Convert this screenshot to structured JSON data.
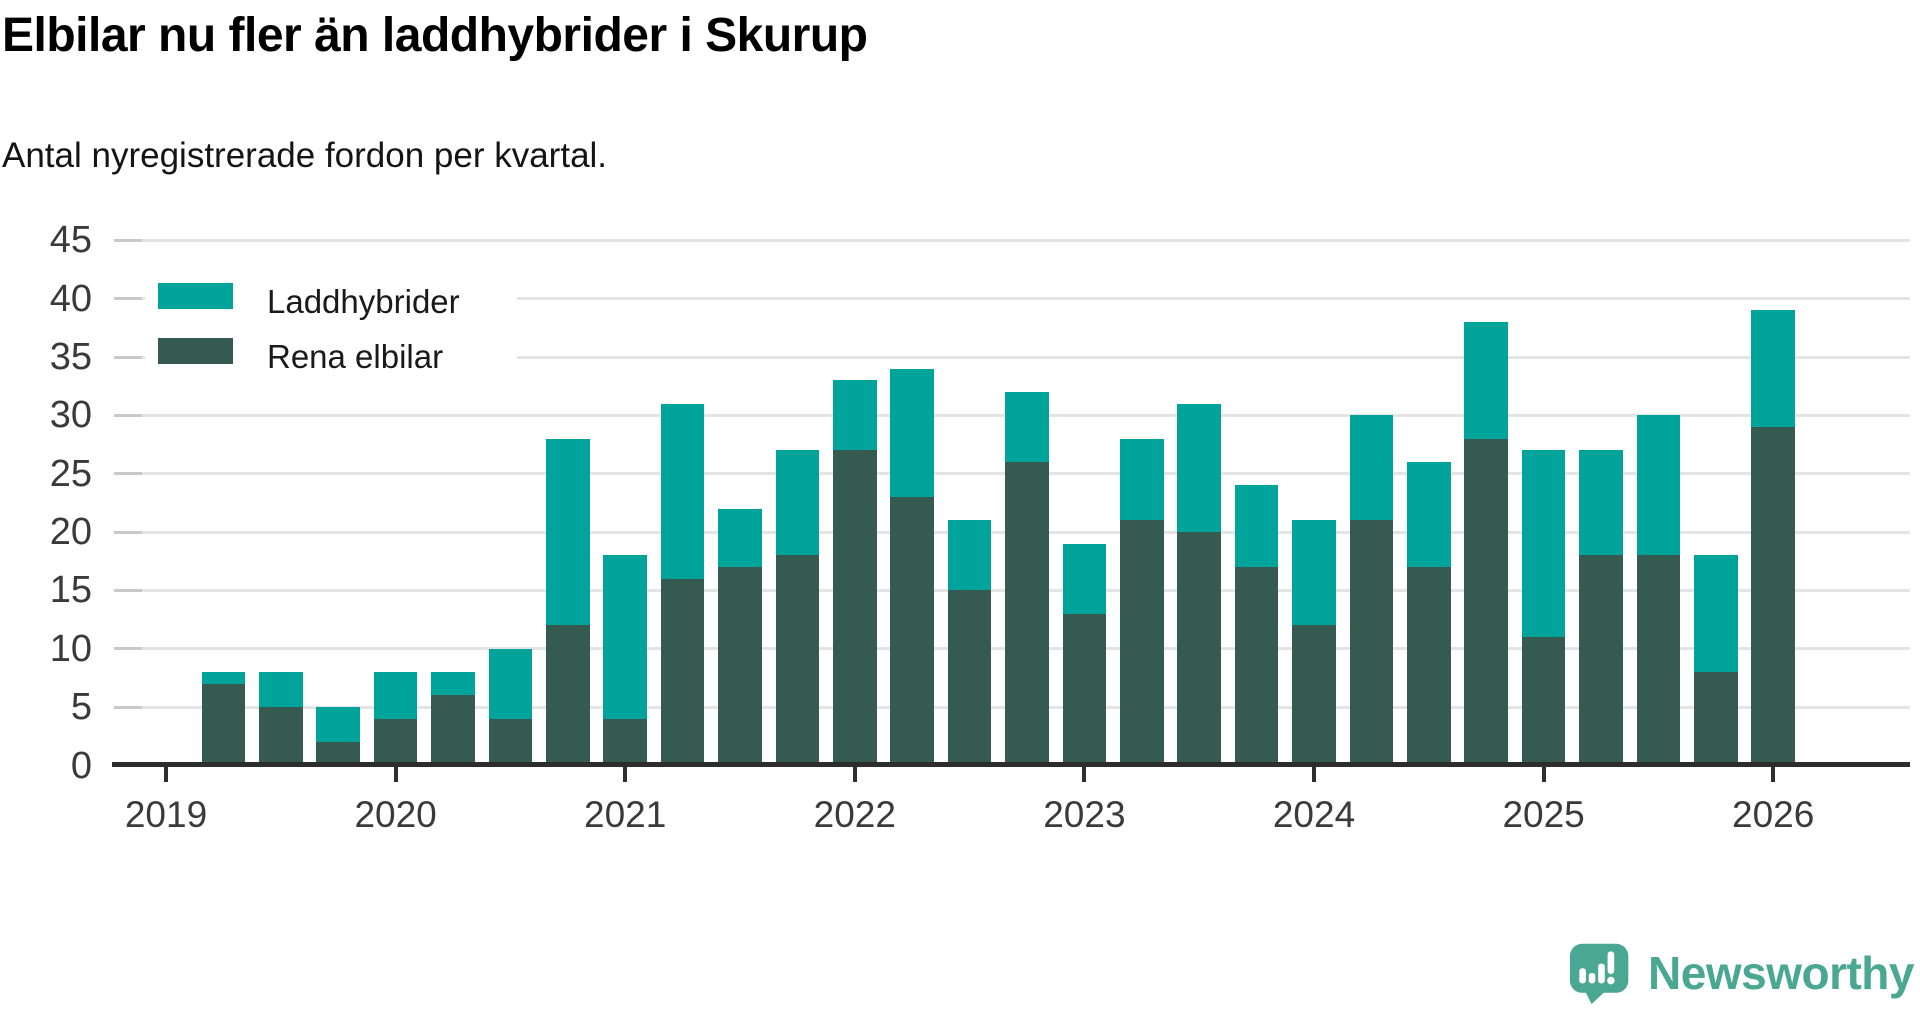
{
  "header": {
    "title": "Elbilar nu fler än laddhybrider i Skurup",
    "subtitle": "Antal nyregistrerade fordon per kvartal."
  },
  "legend": {
    "items": [
      {
        "label": "Laddhybrider",
        "color": "#00a49b"
      },
      {
        "label": "Rena elbilar",
        "color": "#355b50"
      }
    ]
  },
  "chart_data": {
    "type": "bar",
    "stacked": true,
    "title": "Elbilar nu fler än laddhybrider i Skurup",
    "subtitle": "Antal nyregistrerade fordon per kvartal.",
    "xlabel": "",
    "ylabel": "",
    "ylim": [
      0,
      45
    ],
    "grid": true,
    "legend_position": "top-left-inside",
    "y_ticks": [
      0,
      5,
      10,
      15,
      20,
      25,
      30,
      35,
      40,
      45
    ],
    "x_tick_labels": [
      "2019",
      "2020",
      "2021",
      "2022",
      "2023",
      "2024",
      "2025",
      "2026"
    ],
    "start_slot": 1,
    "categories": [
      "2019-Q2",
      "2019-Q3",
      "2019-Q4",
      "2020-Q1",
      "2020-Q2",
      "2020-Q3",
      "2020-Q4",
      "2021-Q1",
      "2021-Q2",
      "2021-Q3",
      "2021-Q4",
      "2022-Q1",
      "2022-Q2",
      "2022-Q3",
      "2022-Q4",
      "2023-Q1",
      "2023-Q2",
      "2023-Q3",
      "2023-Q4",
      "2024-Q1",
      "2024-Q2",
      "2024-Q3",
      "2024-Q4",
      "2025-Q1",
      "2025-Q2",
      "2025-Q3",
      "2025-Q4",
      "2026-Q1"
    ],
    "series": [
      {
        "name": "Rena elbilar",
        "color": "#355b50",
        "stack_order": "bottom",
        "values": [
          7,
          5,
          2,
          4,
          6,
          4,
          12,
          4,
          16,
          17,
          18,
          27,
          23,
          15,
          26,
          13,
          21,
          20,
          17,
          12,
          21,
          17,
          28,
          11,
          18,
          18,
          8,
          29
        ]
      },
      {
        "name": "Laddhybrider",
        "color": "#00a49b",
        "stack_order": "top",
        "values": [
          1,
          3,
          3,
          4,
          2,
          6,
          16,
          14,
          15,
          5,
          9,
          6,
          11,
          6,
          6,
          6,
          7,
          11,
          7,
          9,
          9,
          9,
          10,
          16,
          9,
          12,
          10,
          10
        ]
      }
    ],
    "totals": [
      8,
      8,
      5,
      8,
      8,
      10,
      28,
      18,
      31,
      22,
      27,
      33,
      34,
      21,
      32,
      19,
      28,
      31,
      24,
      21,
      30,
      26,
      38,
      27,
      27,
      30,
      18,
      39
    ]
  },
  "branding": {
    "name": "Newsworthy",
    "color": "#4aa791"
  }
}
